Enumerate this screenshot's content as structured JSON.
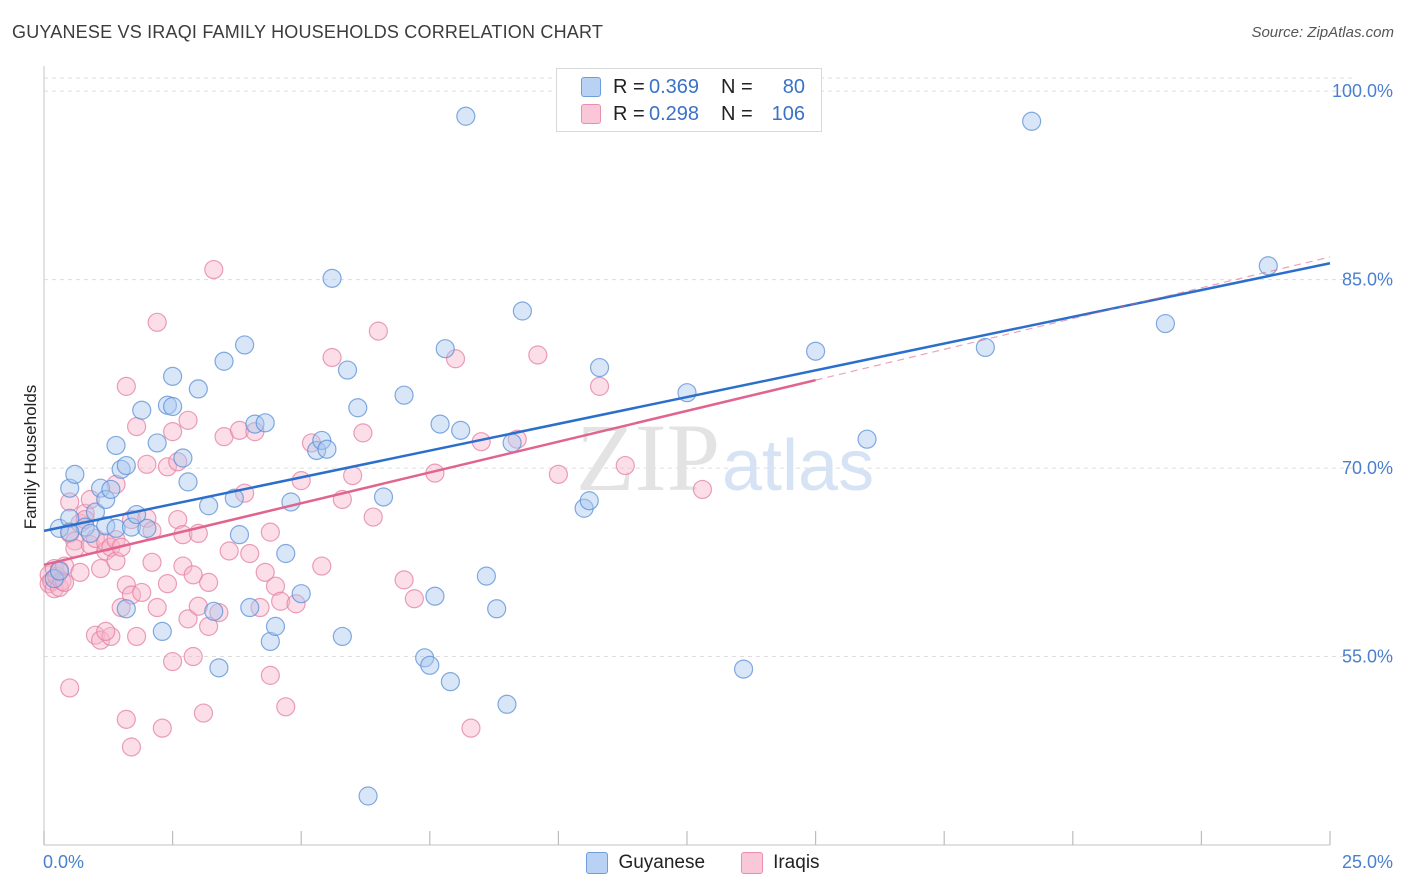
{
  "title": "GUYANESE VS IRAQI FAMILY HOUSEHOLDS CORRELATION CHART",
  "source": "Source: ZipAtlas.com",
  "watermark": {
    "zip": "ZIP",
    "atlas": "atlas"
  },
  "legend": {
    "rows": [
      {
        "r_label": "R = ",
        "r_value": "0.369",
        "n_label": "N = ",
        "n_value": "80"
      },
      {
        "r_label": "R = ",
        "r_value": "0.298",
        "n_label": "N = ",
        "n_value": "106"
      }
    ]
  },
  "bottom_legend": {
    "series0": "Guyanese",
    "series1": "Iraqis"
  },
  "colors": {
    "blue_fill": "#a9c8f0",
    "blue_stroke": "#5b8fd6",
    "blue_line": "#2a6fcc",
    "pink_fill": "#f6b6cb",
    "pink_stroke": "#e47fa2",
    "pink_line": "#e0648e",
    "axis_label": "#4a7fcf",
    "grid": "#dddddd"
  },
  "chart_data": {
    "type": "scatter",
    "title": "GUYANESE VS IRAQI FAMILY HOUSEHOLDS CORRELATION CHART",
    "xlabel": "",
    "ylabel": "Family Households",
    "xlim": [
      0,
      25
    ],
    "ylim": [
      40,
      102
    ],
    "x_tick_labels": [
      "0.0%",
      "25.0%"
    ],
    "y_ticks": [
      55,
      70,
      85,
      100
    ],
    "y_tick_labels": [
      "55.0%",
      "70.0%",
      "85.0%",
      "100.0%"
    ],
    "grid": true,
    "legend_position": "top-center",
    "series": [
      {
        "name": "Guyanese",
        "R": 0.369,
        "N": 80,
        "trend": {
          "x": [
            0,
            25
          ],
          "y": [
            65.0,
            86.3
          ]
        },
        "points": [
          [
            0.3,
            65.2
          ],
          [
            0.5,
            66.0
          ],
          [
            0.5,
            68.4
          ],
          [
            0.6,
            69.5
          ],
          [
            0.8,
            65.3
          ],
          [
            0.9,
            64.8
          ],
          [
            1.0,
            66.5
          ],
          [
            1.1,
            68.4
          ],
          [
            1.2,
            65.4
          ],
          [
            1.2,
            67.5
          ],
          [
            1.3,
            68.3
          ],
          [
            1.4,
            71.8
          ],
          [
            1.4,
            65.2
          ],
          [
            1.5,
            69.9
          ],
          [
            1.6,
            58.8
          ],
          [
            1.6,
            70.2
          ],
          [
            1.7,
            65.3
          ],
          [
            1.8,
            66.3
          ],
          [
            1.9,
            74.6
          ],
          [
            2.0,
            65.2
          ],
          [
            2.2,
            72.0
          ],
          [
            2.3,
            57.0
          ],
          [
            2.4,
            75.0
          ],
          [
            2.5,
            74.9
          ],
          [
            2.5,
            77.3
          ],
          [
            2.7,
            70.8
          ],
          [
            2.8,
            68.9
          ],
          [
            3.0,
            76.3
          ],
          [
            3.2,
            67.0
          ],
          [
            3.3,
            58.6
          ],
          [
            3.4,
            54.1
          ],
          [
            3.5,
            78.5
          ],
          [
            3.7,
            67.6
          ],
          [
            3.8,
            64.7
          ],
          [
            3.9,
            79.8
          ],
          [
            4.0,
            58.9
          ],
          [
            4.1,
            73.5
          ],
          [
            4.3,
            73.6
          ],
          [
            4.4,
            56.2
          ],
          [
            4.5,
            57.4
          ],
          [
            4.7,
            63.2
          ],
          [
            4.8,
            67.3
          ],
          [
            5.0,
            60.0
          ],
          [
            5.3,
            71.4
          ],
          [
            5.4,
            72.2
          ],
          [
            5.5,
            71.5
          ],
          [
            5.6,
            85.1
          ],
          [
            5.8,
            56.6
          ],
          [
            5.9,
            77.8
          ],
          [
            6.1,
            74.8
          ],
          [
            6.3,
            43.9
          ],
          [
            6.6,
            67.7
          ],
          [
            7.0,
            75.8
          ],
          [
            7.4,
            54.9
          ],
          [
            7.5,
            54.3
          ],
          [
            7.6,
            59.8
          ],
          [
            7.7,
            73.5
          ],
          [
            7.8,
            79.5
          ],
          [
            7.9,
            53.0
          ],
          [
            8.1,
            73.0
          ],
          [
            8.2,
            98.0
          ],
          [
            8.6,
            61.4
          ],
          [
            8.8,
            58.8
          ],
          [
            9.0,
            51.2
          ],
          [
            9.1,
            72.0
          ],
          [
            9.3,
            82.5
          ],
          [
            10.5,
            66.8
          ],
          [
            10.6,
            67.4
          ],
          [
            10.8,
            78.0
          ],
          [
            12.5,
            76.0
          ],
          [
            13.6,
            54.0
          ],
          [
            15.0,
            79.3
          ],
          [
            16.0,
            72.3
          ],
          [
            18.3,
            79.6
          ],
          [
            19.2,
            97.6
          ],
          [
            21.8,
            81.5
          ],
          [
            23.8,
            86.1
          ],
          [
            0.2,
            61.2
          ],
          [
            0.3,
            61.8
          ],
          [
            0.5,
            64.9
          ]
        ]
      },
      {
        "name": "Iraqis",
        "R": 0.298,
        "N": 106,
        "trend": {
          "x": [
            0,
            15
          ],
          "y": [
            62.3,
            77.0
          ]
        },
        "points": [
          [
            0.1,
            61.5
          ],
          [
            0.1,
            60.8
          ],
          [
            0.15,
            61.0
          ],
          [
            0.2,
            60.4
          ],
          [
            0.2,
            62.0
          ],
          [
            0.25,
            61.4
          ],
          [
            0.3,
            61.9
          ],
          [
            0.3,
            60.5
          ],
          [
            0.35,
            61.0
          ],
          [
            0.4,
            60.9
          ],
          [
            0.4,
            62.2
          ],
          [
            0.5,
            64.8
          ],
          [
            0.5,
            67.3
          ],
          [
            0.6,
            64.2
          ],
          [
            0.6,
            63.6
          ],
          [
            0.7,
            65.6
          ],
          [
            0.7,
            61.7
          ],
          [
            0.8,
            66.4
          ],
          [
            0.8,
            65.9
          ],
          [
            0.9,
            63.9
          ],
          [
            0.9,
            67.5
          ],
          [
            1.0,
            56.7
          ],
          [
            1.0,
            64.4
          ],
          [
            1.1,
            62.0
          ],
          [
            1.1,
            56.3
          ],
          [
            1.2,
            63.4
          ],
          [
            1.2,
            64.1
          ],
          [
            1.3,
            56.6
          ],
          [
            1.3,
            63.7
          ],
          [
            1.4,
            64.3
          ],
          [
            1.4,
            62.6
          ],
          [
            1.4,
            68.7
          ],
          [
            1.5,
            63.7
          ],
          [
            1.5,
            58.9
          ],
          [
            1.6,
            76.5
          ],
          [
            1.6,
            60.7
          ],
          [
            1.7,
            59.9
          ],
          [
            1.7,
            47.8
          ],
          [
            1.7,
            65.9
          ],
          [
            1.8,
            56.6
          ],
          [
            1.8,
            73.3
          ],
          [
            1.9,
            60.1
          ],
          [
            2.0,
            66.0
          ],
          [
            2.0,
            70.3
          ],
          [
            2.1,
            65.0
          ],
          [
            2.1,
            62.5
          ],
          [
            2.2,
            81.6
          ],
          [
            2.2,
            58.9
          ],
          [
            2.3,
            49.3
          ],
          [
            2.4,
            60.8
          ],
          [
            2.4,
            70.1
          ],
          [
            2.5,
            54.6
          ],
          [
            2.5,
            72.9
          ],
          [
            2.6,
            65.9
          ],
          [
            2.6,
            70.5
          ],
          [
            2.7,
            64.7
          ],
          [
            2.7,
            62.2
          ],
          [
            2.8,
            73.8
          ],
          [
            2.8,
            58.0
          ],
          [
            2.9,
            55.0
          ],
          [
            3.0,
            64.8
          ],
          [
            3.0,
            59.0
          ],
          [
            3.1,
            50.5
          ],
          [
            3.2,
            60.9
          ],
          [
            3.2,
            57.4
          ],
          [
            3.3,
            85.8
          ],
          [
            3.4,
            58.5
          ],
          [
            3.5,
            72.5
          ],
          [
            3.8,
            73.0
          ],
          [
            3.9,
            68.0
          ],
          [
            4.0,
            63.2
          ],
          [
            4.1,
            72.9
          ],
          [
            4.2,
            58.9
          ],
          [
            4.3,
            61.7
          ],
          [
            4.4,
            64.9
          ],
          [
            4.5,
            60.6
          ],
          [
            4.6,
            59.4
          ],
          [
            4.7,
            51.0
          ],
          [
            4.9,
            59.2
          ],
          [
            5.0,
            69.0
          ],
          [
            5.2,
            72.0
          ],
          [
            5.4,
            62.2
          ],
          [
            5.6,
            78.8
          ],
          [
            5.8,
            67.5
          ],
          [
            6.0,
            69.4
          ],
          [
            6.2,
            72.8
          ],
          [
            6.4,
            66.1
          ],
          [
            6.5,
            80.9
          ],
          [
            7.0,
            61.1
          ],
          [
            7.2,
            59.6
          ],
          [
            7.6,
            69.6
          ],
          [
            8.0,
            78.7
          ],
          [
            8.3,
            49.3
          ],
          [
            8.5,
            72.1
          ],
          [
            9.2,
            72.3
          ],
          [
            9.6,
            79.0
          ],
          [
            10.0,
            69.5
          ],
          [
            10.8,
            76.5
          ],
          [
            11.3,
            70.2
          ],
          [
            12.8,
            68.3
          ],
          [
            0.5,
            52.5
          ],
          [
            1.2,
            57.0
          ],
          [
            1.6,
            50.0
          ],
          [
            2.9,
            61.5
          ],
          [
            3.6,
            63.4
          ],
          [
            4.4,
            53.5
          ]
        ]
      }
    ]
  }
}
